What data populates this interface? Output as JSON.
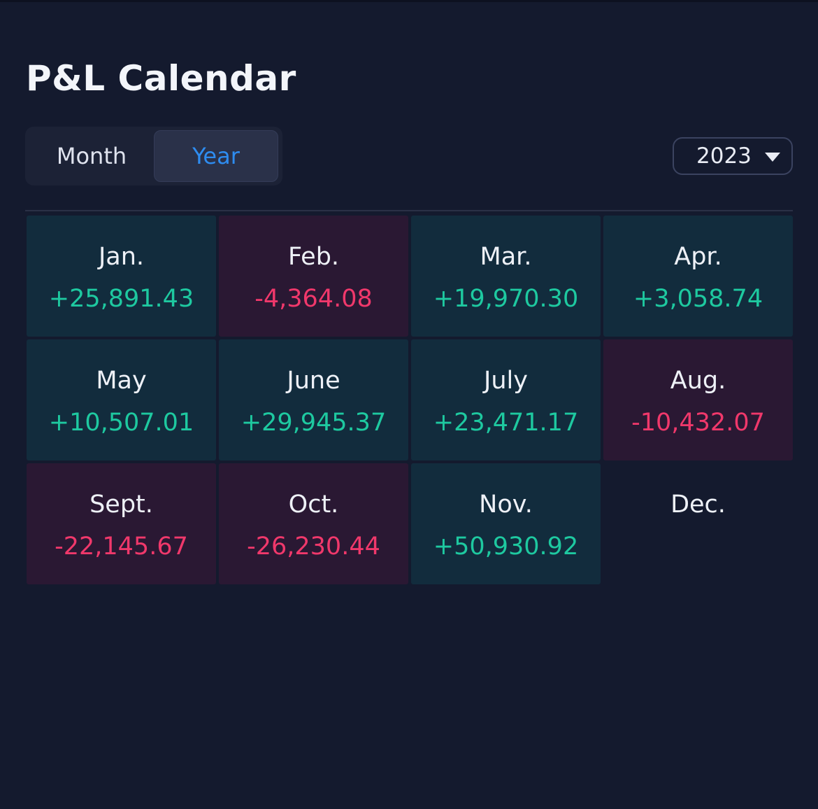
{
  "page": {
    "title": "P&L Calendar"
  },
  "view_toggle": {
    "options": [
      "Month",
      "Year"
    ],
    "selected": "Year"
  },
  "year_select": {
    "value": "2023",
    "icon": "caret-down-icon"
  },
  "months": [
    {
      "name": "Jan.",
      "pnl": "+25,891.43",
      "status": "positive"
    },
    {
      "name": "Feb.",
      "pnl": "-4,364.08",
      "status": "negative"
    },
    {
      "name": "Mar.",
      "pnl": "+19,970.30",
      "status": "positive"
    },
    {
      "name": "Apr.",
      "pnl": "+3,058.74",
      "status": "positive"
    },
    {
      "name": "May",
      "pnl": "+10,507.01",
      "status": "positive"
    },
    {
      "name": "June",
      "pnl": "+29,945.37",
      "status": "positive"
    },
    {
      "name": "July",
      "pnl": "+23,471.17",
      "status": "positive"
    },
    {
      "name": "Aug.",
      "pnl": "-10,432.07",
      "status": "negative"
    },
    {
      "name": "Sept.",
      "pnl": "-22,145.67",
      "status": "negative"
    },
    {
      "name": "Oct.",
      "pnl": "-26,230.44",
      "status": "negative"
    },
    {
      "name": "Nov.",
      "pnl": "+50,930.92",
      "status": "positive"
    },
    {
      "name": "Dec.",
      "pnl": "",
      "status": "none"
    }
  ],
  "colors": {
    "background": "#141a2e",
    "positive_text": "#1ec9a0",
    "negative_text": "#f0386b",
    "positive_cell": "#122c3d",
    "negative_cell": "#2a1833",
    "accent": "#2e8cf0"
  }
}
